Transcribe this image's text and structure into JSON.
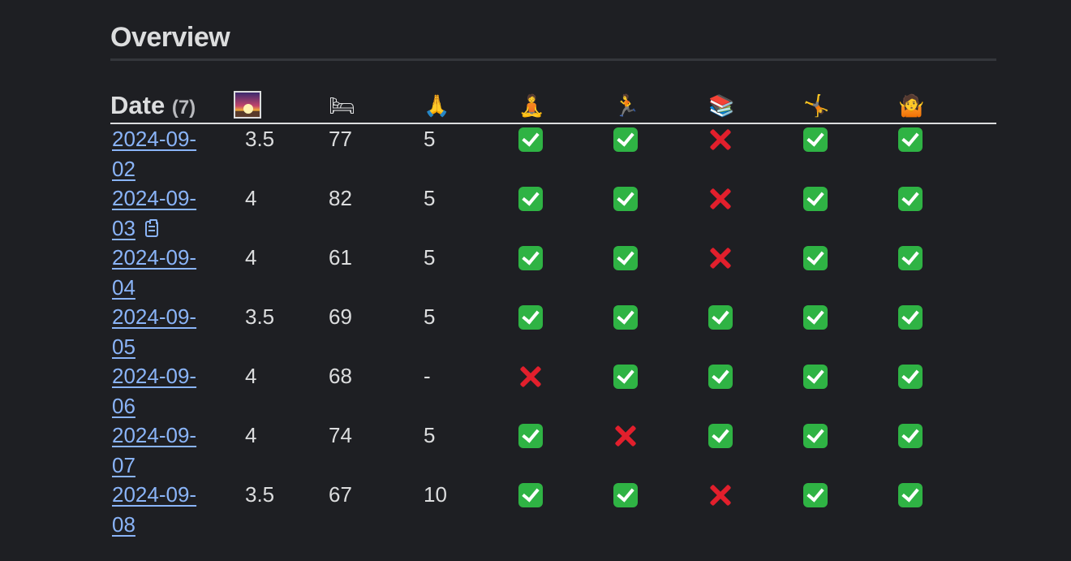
{
  "heading": "Overview",
  "table": {
    "date_header": "Date",
    "date_count": "(7)",
    "columns": [
      {
        "icon": "sunrise-icon",
        "glyph": "🌅"
      },
      {
        "icon": "bed-icon",
        "glyph": "🛏"
      },
      {
        "icon": "folded-hands-icon",
        "glyph": "🙏"
      },
      {
        "icon": "meditation-icon",
        "glyph": "🧘"
      },
      {
        "icon": "running-icon",
        "glyph": "🏃"
      },
      {
        "icon": "books-icon",
        "glyph": "📚"
      },
      {
        "icon": "cartwheel-icon",
        "glyph": "🤸"
      },
      {
        "icon": "shrug-icon",
        "glyph": "🤷"
      }
    ],
    "rows": [
      {
        "date": "2024-09-02",
        "has_note": false,
        "c1": "3.5",
        "c2": "77",
        "c3": "5",
        "marks": [
          "check",
          "check",
          "cross",
          "check",
          "check"
        ]
      },
      {
        "date": "2024-09-03",
        "has_note": true,
        "c1": "4",
        "c2": "82",
        "c3": "5",
        "marks": [
          "check",
          "check",
          "cross",
          "check",
          "check"
        ]
      },
      {
        "date": "2024-09-04",
        "has_note": false,
        "c1": "4",
        "c2": "61",
        "c3": "5",
        "marks": [
          "check",
          "check",
          "cross",
          "check",
          "check"
        ]
      },
      {
        "date": "2024-09-05",
        "has_note": false,
        "c1": "3.5",
        "c2": "69",
        "c3": "5",
        "marks": [
          "check",
          "check",
          "check",
          "check",
          "check"
        ]
      },
      {
        "date": "2024-09-06",
        "has_note": false,
        "c1": "4",
        "c2": "68",
        "c3": "-",
        "marks": [
          "cross",
          "check",
          "check",
          "check",
          "check"
        ]
      },
      {
        "date": "2024-09-07",
        "has_note": false,
        "c1": "4",
        "c2": "74",
        "c3": "5",
        "marks": [
          "check",
          "cross",
          "check",
          "check",
          "check"
        ]
      },
      {
        "date": "2024-09-08",
        "has_note": false,
        "c1": "3.5",
        "c2": "67",
        "c3": "10",
        "marks": [
          "check",
          "check",
          "cross",
          "check",
          "check"
        ]
      }
    ]
  },
  "colors": {
    "background": "#1e1f23",
    "text": "#dcddde",
    "link": "#8ab4f8",
    "check": "#2fb344",
    "cross": "#e21f2c"
  }
}
